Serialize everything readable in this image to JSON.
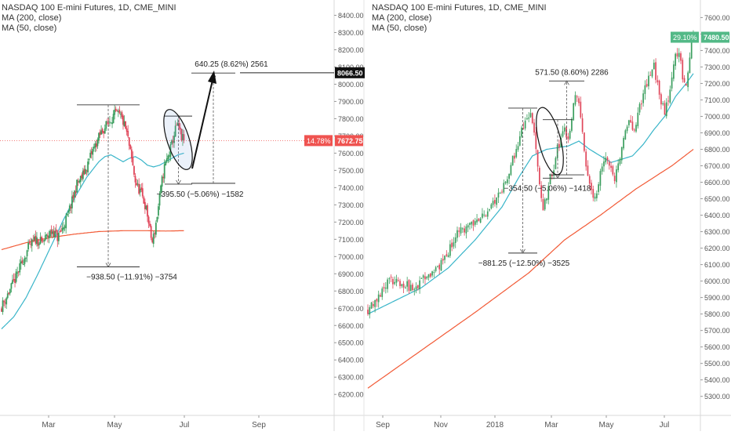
{
  "colors": {
    "up": "#3b9e5e",
    "down": "#e0465a",
    "ma50": "#39b5c9",
    "ma200": "#f25a36",
    "axis_text": "#555555",
    "grid": "#eeeeee",
    "badge_green": "#53b987",
    "badge_red": "#ef5350"
  },
  "chart_data": [
    {
      "type": "candlestick",
      "title": "NASDAQ 100 E-mini Futures, 1D, CME_MINI",
      "indicators": [
        "MA (200, close)",
        "MA (50, close)"
      ],
      "y_ticks": [
        6200,
        6300,
        6400,
        6500,
        6600,
        6700,
        6800,
        6900,
        7000,
        7100,
        7200,
        7300,
        7400,
        7500,
        7600,
        7700,
        7800,
        7900,
        8000,
        8100,
        8200,
        8300,
        8400
      ],
      "ylim": [
        6160,
        8425
      ],
      "x_labels": [
        "Mar",
        "May",
        "Jul",
        "Sep"
      ],
      "close_path": [
        [
          0,
          6710
        ],
        [
          5,
          6780
        ],
        [
          10,
          6850
        ],
        [
          16,
          6950
        ],
        [
          22,
          7050
        ],
        [
          28,
          7100
        ],
        [
          33,
          7080
        ],
        [
          38,
          7120
        ],
        [
          42,
          7150
        ],
        [
          46,
          7110
        ],
        [
          50,
          7160
        ],
        [
          54,
          7230
        ],
        [
          58,
          7320
        ],
        [
          62,
          7420
        ],
        [
          66,
          7460
        ],
        [
          70,
          7520
        ],
        [
          74,
          7600
        ],
        [
          78,
          7660
        ],
        [
          82,
          7720
        ],
        [
          86,
          7760
        ],
        [
          90,
          7800
        ],
        [
          94,
          7830
        ],
        [
          98,
          7810
        ],
        [
          100,
          7780
        ],
        [
          102,
          7740
        ],
        [
          104,
          7680
        ],
        [
          106,
          7600
        ],
        [
          108,
          7520
        ],
        [
          110,
          7440
        ],
        [
          112,
          7400
        ],
        [
          114,
          7380
        ],
        [
          116,
          7340
        ],
        [
          118,
          7300
        ],
        [
          120,
          7240
        ],
        [
          122,
          7150
        ],
        [
          124,
          7080
        ],
        [
          126,
          7150
        ],
        [
          128,
          7240
        ],
        [
          130,
          7340
        ],
        [
          132,
          7440
        ],
        [
          134,
          7520
        ],
        [
          136,
          7560
        ],
        [
          138,
          7600
        ],
        [
          140,
          7650
        ],
        [
          142,
          7710
        ],
        [
          144,
          7760
        ],
        [
          146,
          7740
        ],
        [
          148,
          7690
        ],
        [
          150,
          7672.75
        ]
      ],
      "ma50": [
        [
          0,
          6580
        ],
        [
          10,
          6650
        ],
        [
          20,
          6760
        ],
        [
          30,
          6900
        ],
        [
          40,
          7050
        ],
        [
          50,
          7200
        ],
        [
          60,
          7340
        ],
        [
          70,
          7460
        ],
        [
          80,
          7550
        ],
        [
          85,
          7580
        ],
        [
          90,
          7590
        ],
        [
          95,
          7570
        ],
        [
          100,
          7550
        ],
        [
          105,
          7570
        ],
        [
          110,
          7580
        ],
        [
          115,
          7560
        ],
        [
          120,
          7530
        ],
        [
          125,
          7520
        ],
        [
          130,
          7530
        ],
        [
          135,
          7550
        ],
        [
          140,
          7570
        ],
        [
          145,
          7590
        ],
        [
          150,
          7600
        ]
      ],
      "ma200": [
        [
          0,
          7040
        ],
        [
          20,
          7080
        ],
        [
          40,
          7110
        ],
        [
          60,
          7130
        ],
        [
          80,
          7145
        ],
        [
          100,
          7150
        ],
        [
          120,
          7150
        ],
        [
          135,
          7148
        ],
        [
          150,
          7150
        ]
      ],
      "last_price": "7672.75",
      "last_change": "14.78%",
      "target_price": "8066.50",
      "annotations": [
        "640.25 (8.62%) 2561",
        "−395.50 (−5.06%) −1582",
        "−938.50 (−11.91%) −3754"
      ]
    },
    {
      "type": "candlestick",
      "title": "NASDAQ 100 E-mini Futures, 1D, CME_MINI",
      "indicators": [
        "MA (200, close)",
        "MA (50, close)"
      ],
      "y_ticks": [
        5300,
        5400,
        5500,
        5600,
        5700,
        5800,
        5900,
        6000,
        6100,
        6200,
        6300,
        6400,
        6500,
        6600,
        6700,
        6800,
        6900,
        7000,
        7100,
        7200,
        7300,
        7400,
        7500,
        7600
      ],
      "ylim": [
        5270,
        7640
      ],
      "x_labels": [
        "Sep",
        "Nov",
        "2018",
        "Mar",
        "May",
        "Jul"
      ],
      "close_path": [
        [
          0,
          5830
        ],
        [
          5,
          5900
        ],
        [
          10,
          5980
        ],
        [
          15,
          6010
        ],
        [
          20,
          5990
        ],
        [
          25,
          5940
        ],
        [
          30,
          6010
        ],
        [
          35,
          6050
        ],
        [
          40,
          6090
        ],
        [
          45,
          6180
        ],
        [
          50,
          6280
        ],
        [
          55,
          6320
        ],
        [
          60,
          6360
        ],
        [
          65,
          6400
        ],
        [
          70,
          6480
        ],
        [
          75,
          6560
        ],
        [
          80,
          6700
        ],
        [
          85,
          6880
        ],
        [
          90,
          7020
        ],
        [
          92,
          6980
        ],
        [
          94,
          6800
        ],
        [
          96,
          6560
        ],
        [
          98,
          6420
        ],
        [
          100,
          6520
        ],
        [
          102,
          6620
        ],
        [
          104,
          6700
        ],
        [
          106,
          6800
        ],
        [
          108,
          6860
        ],
        [
          110,
          6920
        ],
        [
          112,
          6880
        ],
        [
          114,
          7000
        ],
        [
          116,
          7150
        ],
        [
          118,
          7100
        ],
        [
          120,
          6900
        ],
        [
          122,
          6700
        ],
        [
          124,
          6580
        ],
        [
          126,
          6480
        ],
        [
          128,
          6560
        ],
        [
          130,
          6650
        ],
        [
          132,
          6700
        ],
        [
          134,
          6760
        ],
        [
          136,
          6700
        ],
        [
          138,
          6620
        ],
        [
          140,
          6720
        ],
        [
          142,
          6820
        ],
        [
          144,
          6900
        ],
        [
          146,
          6950
        ],
        [
          148,
          6920
        ],
        [
          150,
          6960
        ],
        [
          152,
          7050
        ],
        [
          154,
          7120
        ],
        [
          156,
          7200
        ],
        [
          158,
          7250
        ],
        [
          160,
          7300
        ],
        [
          162,
          7200
        ],
        [
          164,
          7100
        ],
        [
          166,
          7000
        ],
        [
          168,
          7120
        ],
        [
          170,
          7260
        ],
        [
          172,
          7350
        ],
        [
          174,
          7400
        ],
        [
          176,
          7250
        ],
        [
          178,
          7200
        ],
        [
          180,
          7380
        ],
        [
          182,
          7480.5
        ]
      ],
      "ma50": [
        [
          0,
          5800
        ],
        [
          15,
          5880
        ],
        [
          30,
          5960
        ],
        [
          45,
          6080
        ],
        [
          60,
          6250
        ],
        [
          75,
          6450
        ],
        [
          85,
          6640
        ],
        [
          92,
          6760
        ],
        [
          100,
          6800
        ],
        [
          106,
          6810
        ],
        [
          112,
          6820
        ],
        [
          118,
          6850
        ],
        [
          124,
          6800
        ],
        [
          130,
          6760
        ],
        [
          136,
          6720
        ],
        [
          142,
          6740
        ],
        [
          148,
          6760
        ],
        [
          154,
          6830
        ],
        [
          160,
          6920
        ],
        [
          166,
          7000
        ],
        [
          172,
          7120
        ],
        [
          178,
          7200
        ],
        [
          182,
          7260
        ]
      ],
      "ma200": [
        [
          0,
          5350
        ],
        [
          30,
          5580
        ],
        [
          60,
          5810
        ],
        [
          90,
          6050
        ],
        [
          110,
          6250
        ],
        [
          130,
          6400
        ],
        [
          150,
          6560
        ],
        [
          170,
          6700
        ],
        [
          182,
          6800
        ]
      ],
      "last_price": "7480.50",
      "last_change": "29.10%",
      "annotations": [
        "571.50 (8.60%) 2286",
        "−354.50 (−5.06%) −1418",
        "−881.25 (−12.50%) −3525"
      ]
    }
  ]
}
